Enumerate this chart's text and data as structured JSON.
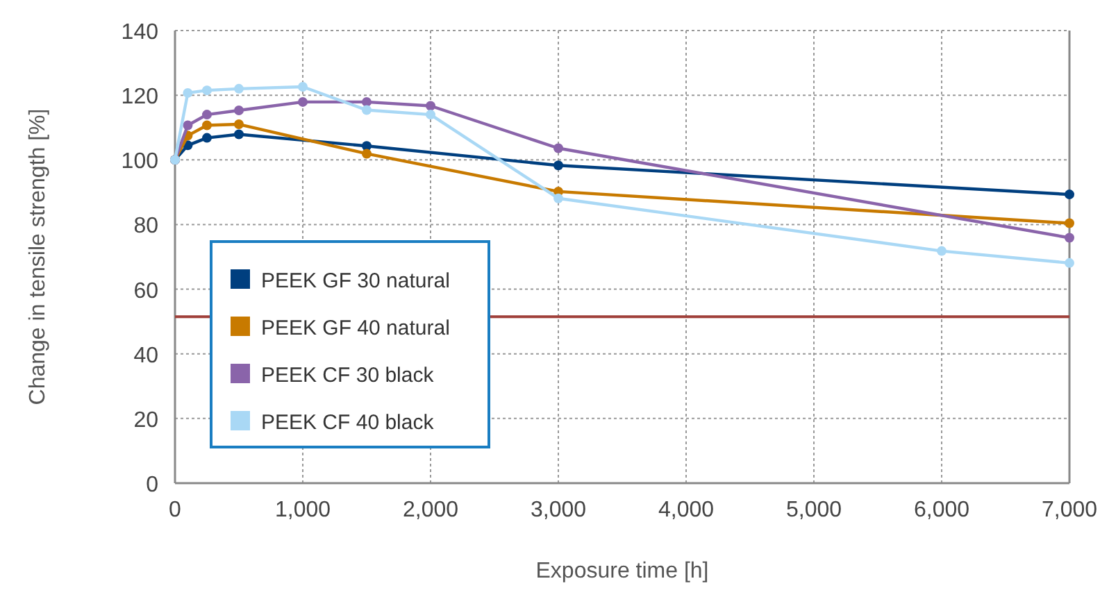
{
  "chart_data": {
    "type": "line",
    "xlabel": "Exposure time [h]",
    "ylabel": "Change in tensile strength [%]",
    "xlim": [
      0,
      7000
    ],
    "xticks": [
      {
        "value": 0,
        "label": "0"
      },
      {
        "value": 1000,
        "label": "1,000"
      },
      {
        "value": 2000,
        "label": "2,000"
      },
      {
        "value": 3000,
        "label": "3,000"
      },
      {
        "value": 4000,
        "label": "4,000"
      },
      {
        "value": 5000,
        "label": "5,000"
      },
      {
        "value": 6000,
        "label": "6,000"
      },
      {
        "value": 7000,
        "label": "7,000"
      }
    ],
    "ylim": [
      0,
      140
    ],
    "yticks": [
      0,
      20,
      40,
      60,
      80,
      100,
      120,
      140
    ],
    "grid": true,
    "legend": "bottom left",
    "marker": "circle",
    "line_style": "solid",
    "series": [
      {
        "name": "PEEK GF 30 natural",
        "color": "#003f7f",
        "x": [
          0,
          100,
          250,
          500,
          1500,
          3000,
          7000
        ],
        "values": [
          100,
          104.5,
          106.8,
          107.9,
          104.3,
          98.3,
          89.3
        ]
      },
      {
        "name": "PEEK GF 40 natural",
        "color": "#c87a00",
        "x": [
          0,
          100,
          250,
          500,
          1500,
          3000,
          7000
        ],
        "values": [
          100,
          107.5,
          110.7,
          111,
          101.9,
          90.2,
          80.4
        ]
      },
      {
        "name": "PEEK CF 30 black",
        "color": "#8a64aa",
        "x": [
          0,
          100,
          250,
          500,
          1000,
          1500,
          2000,
          3000,
          7000
        ],
        "values": [
          100,
          110.7,
          114,
          115.3,
          117.9,
          117.9,
          116.7,
          103.6,
          75.9
        ]
      },
      {
        "name": "PEEK CF 40 black",
        "color": "#a9d8f5",
        "x": [
          0,
          100,
          250,
          500,
          1000,
          1500,
          2000,
          3000,
          6000,
          7000
        ],
        "values": [
          100,
          120.7,
          121.5,
          122,
          122.6,
          115.4,
          114,
          88.1,
          71.8,
          68.1
        ]
      }
    ],
    "ref_lines": [
      {
        "axis": "y",
        "value": 51.5,
        "color": "#a0403a",
        "line_style": "solid"
      }
    ]
  }
}
